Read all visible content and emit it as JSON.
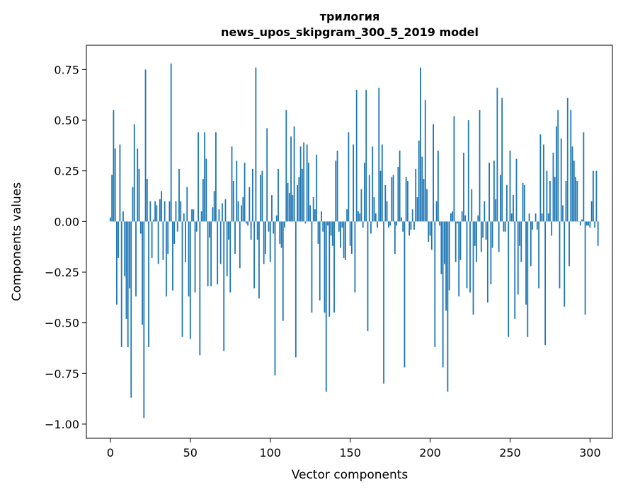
{
  "chart_data": {
    "type": "bar",
    "title": "трилогия",
    "subtitle": "news_upos_skipgram_300_5_2019 model",
    "xlabel": "Vector components",
    "ylabel": "Components values",
    "xlim": [
      -15,
      314
    ],
    "ylim": [
      -1.07,
      0.87
    ],
    "x_ticks": [
      0,
      50,
      100,
      150,
      200,
      250,
      300
    ],
    "y_ticks": [
      -1.0,
      -0.75,
      -0.5,
      -0.25,
      0.0,
      0.25,
      0.5,
      0.75
    ],
    "y_tick_labels": [
      "−1.00",
      "−0.75",
      "−0.50",
      "−0.25",
      "0.00",
      "0.25",
      "0.50",
      "0.75"
    ],
    "bar_color": "#1f77b4",
    "grid": false,
    "values": [
      0.02,
      0.23,
      0.55,
      0.36,
      -0.41,
      -0.18,
      0.38,
      -0.62,
      0.05,
      -0.27,
      -0.48,
      -0.62,
      -0.33,
      -0.87,
      0.17,
      0.48,
      -0.37,
      0.36,
      0.26,
      -0.06,
      -0.51,
      -0.97,
      0.75,
      0.21,
      -0.62,
      0.1,
      -0.18,
      0.01,
      0.1,
      0.08,
      -0.21,
      0.11,
      0.15,
      -0.19,
      0.1,
      -0.37,
      -0.16,
      0.1,
      0.78,
      -0.34,
      -0.11,
      0.1,
      -0.05,
      0.26,
      0.1,
      -0.57,
      0.04,
      -0.2,
      0.17,
      -0.37,
      -0.58,
      0.06,
      0.06,
      -0.35,
      -0.05,
      0.44,
      -0.66,
      0.05,
      0.21,
      0.44,
      0.31,
      -0.32,
      -0.08,
      -0.32,
      0.07,
      0.15,
      0.44,
      -0.31,
      0.06,
      -0.21,
      0.09,
      -0.64,
      0.11,
      -0.27,
      -0.09,
      -0.35,
      0.37,
      0.2,
      -0.16,
      0.3,
      0.1,
      -0.23,
      0.08,
      0.12,
      0.29,
      -0.01,
      -0.02,
      0.17,
      -0.09,
      0.26,
      -0.33,
      0.76,
      -0.09,
      -0.38,
      0.23,
      0.25,
      -0.21,
      -0.16,
      0.46,
      -0.05,
      -0.2,
      0.13,
      -0.06,
      -0.76,
      0.03,
      0.26,
      -0.11,
      -0.13,
      -0.49,
      -0.03,
      0.55,
      0.19,
      0.14,
      0.42,
      0.13,
      0.47,
      -0.67,
      0.18,
      0.22,
      0.37,
      0.26,
      0.39,
      -0.01,
      0.38,
      0.29,
      0.08,
      -0.45,
      0.12,
      0.06,
      0.33,
      -0.11,
      -0.39,
      0.05,
      -0.05,
      -0.45,
      -0.84,
      -0.02,
      -0.47,
      -0.07,
      -0.12,
      -0.45,
      0.3,
      0.35,
      -0.05,
      -0.13,
      -0.03,
      -0.18,
      -0.19,
      0.06,
      0.44,
      -0.12,
      -0.16,
      0.38,
      -0.35,
      0.65,
      0.05,
      0.04,
      0.16,
      -0.03,
      0.29,
      0.65,
      -0.54,
      0.23,
      -0.06,
      0.37,
      0.12,
      0.04,
      -0.03,
      0.66,
      0.25,
      0.38,
      -0.8,
      0.18,
      0.1,
      -0.03,
      -0.02,
      0.22,
      0.23,
      -0.16,
      -0.02,
      0.27,
      0.35,
      0.02,
      -0.05,
      -0.72,
      0.22,
      0.2,
      -0.07,
      -0.04,
      0.06,
      -0.04,
      0.26,
      0.12,
      0.4,
      0.76,
      0.32,
      0.21,
      0.6,
      0.16,
      -0.1,
      -0.07,
      -0.14,
      0.48,
      -0.62,
      0.1,
      0.35,
      -0.02,
      -0.26,
      -0.72,
      -0.21,
      -0.44,
      -0.84,
      -0.34,
      0.04,
      0.05,
      0.52,
      -0.2,
      -0.01,
      -0.37,
      -0.19,
      0.05,
      0.34,
      0.03,
      -0.33,
      0.5,
      -0.35,
      0.16,
      -0.46,
      -0.12,
      -0.2,
      0.03,
      0.55,
      -0.15,
      -0.08,
      0.1,
      -0.09,
      -0.4,
      0.29,
      -0.31,
      -0.13,
      0.3,
      0.11,
      0.66,
      -0.15,
      0.23,
      0.61,
      -0.05,
      -0.05,
      0.18,
      -0.57,
      0.35,
      0.04,
      0.13,
      -0.48,
      0.31,
      -0.36,
      -0.12,
      -0.2,
      0.19,
      0.18,
      -0.41,
      -0.57,
      0.04,
      -0.22,
      -0.04,
      0.0,
      0.04,
      -0.04,
      -0.33,
      0.43,
      0.04,
      0.38,
      -0.61,
      0.25,
      0.04,
      0.2,
      -0.07,
      0.34,
      0.22,
      0.47,
      0.55,
      -0.33,
      0.41,
      0.08,
      -0.42,
      0.2,
      0.61,
      -0.22,
      0.55,
      0.37,
      0.3,
      0.22,
      0.2,
      0.0,
      -0.02,
      0.01,
      0.44,
      -0.46,
      -0.02,
      -0.02,
      -0.03,
      0.1,
      0.25,
      -0.03,
      0.25,
      -0.12
    ]
  }
}
